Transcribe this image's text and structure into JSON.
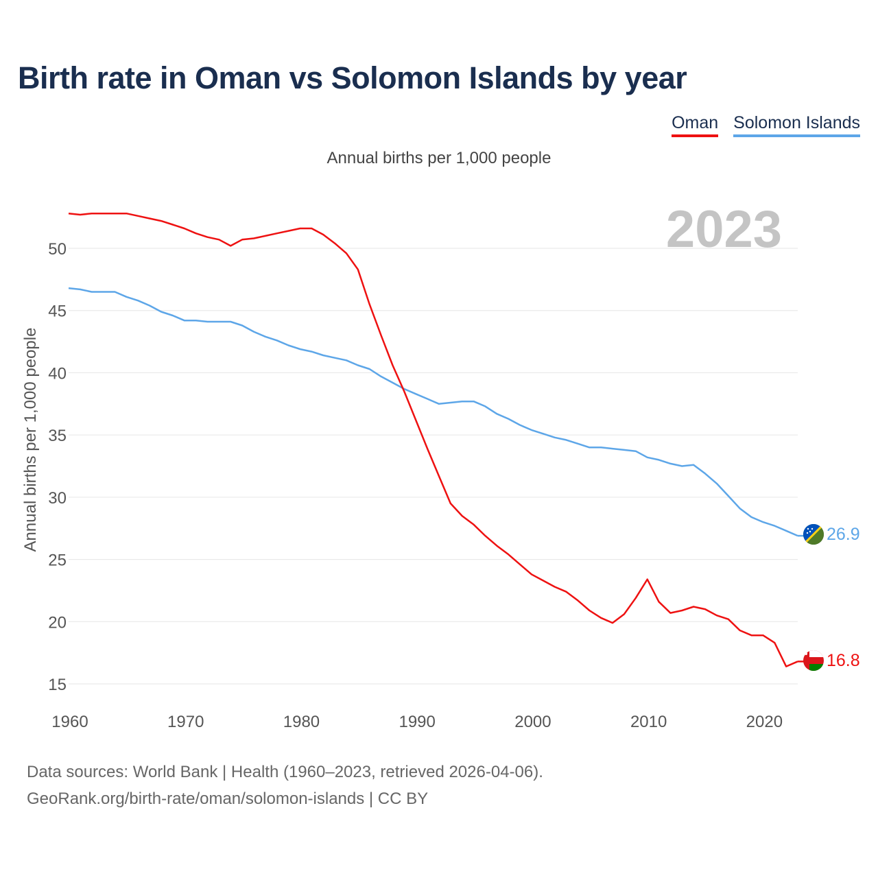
{
  "title": "Birth rate in Oman vs Solomon Islands by year",
  "subtitle": "Annual births per 1,000 people",
  "legend": [
    {
      "name": "Oman",
      "color": "#ee1111"
    },
    {
      "name": "Solomon Islands",
      "color": "#5da6e8"
    }
  ],
  "source": {
    "line1": "Data sources: World Bank | Health (1960–2023, retrieved 2026-04-06).",
    "line2": "GeoRank.org/birth-rate/oman/solomon-islands | CC BY"
  },
  "chart_data": {
    "type": "line",
    "title": "Birth rate in Oman vs Solomon Islands by year",
    "ylabel": "Annual births per 1,000 people",
    "xlabel": "",
    "year_label": "2023",
    "xlim": [
      1960,
      2023
    ],
    "ylim": [
      14,
      54
    ],
    "xticks": [
      1960,
      1970,
      1980,
      1990,
      2000,
      2010,
      2020
    ],
    "yticks": [
      15,
      20,
      25,
      30,
      35,
      40,
      45,
      50
    ],
    "grid": true,
    "x": [
      1960,
      1961,
      1962,
      1963,
      1964,
      1965,
      1966,
      1967,
      1968,
      1969,
      1970,
      1971,
      1972,
      1973,
      1974,
      1975,
      1976,
      1977,
      1978,
      1979,
      1980,
      1981,
      1982,
      1983,
      1984,
      1985,
      1986,
      1987,
      1988,
      1989,
      1990,
      1991,
      1992,
      1993,
      1994,
      1995,
      1996,
      1997,
      1998,
      1999,
      2000,
      2001,
      2002,
      2003,
      2004,
      2005,
      2006,
      2007,
      2008,
      2009,
      2010,
      2011,
      2012,
      2013,
      2014,
      2015,
      2016,
      2017,
      2018,
      2019,
      2020,
      2021,
      2022,
      2023
    ],
    "series": [
      {
        "name": "Oman",
        "color": "#ee1111",
        "end_label": "16.8",
        "values": [
          52.8,
          52.7,
          52.8,
          52.8,
          52.8,
          52.8,
          52.6,
          52.4,
          52.2,
          51.9,
          51.6,
          51.2,
          50.9,
          50.7,
          50.2,
          50.7,
          50.8,
          51.0,
          51.2,
          51.4,
          51.6,
          51.6,
          51.1,
          50.4,
          49.6,
          48.3,
          45.5,
          43.0,
          40.6,
          38.5,
          36.2,
          33.9,
          31.7,
          29.5,
          28.5,
          27.8,
          26.9,
          26.1,
          25.4,
          24.6,
          23.8,
          23.3,
          22.8,
          22.4,
          21.7,
          20.9,
          20.3,
          19.9,
          20.6,
          21.9,
          23.4,
          21.6,
          20.7,
          20.9,
          21.2,
          21.0,
          20.5,
          20.2,
          19.3,
          18.9,
          18.9,
          18.3,
          16.4,
          16.8
        ]
      },
      {
        "name": "Solomon Islands",
        "color": "#5da6e8",
        "end_label": "26.9",
        "values": [
          46.8,
          46.7,
          46.5,
          46.5,
          46.5,
          46.1,
          45.8,
          45.4,
          44.9,
          44.6,
          44.2,
          44.2,
          44.1,
          44.1,
          44.1,
          43.8,
          43.3,
          42.9,
          42.6,
          42.2,
          41.9,
          41.7,
          41.4,
          41.2,
          41.0,
          40.6,
          40.3,
          39.7,
          39.2,
          38.7,
          38.3,
          37.9,
          37.5,
          37.6,
          37.7,
          37.7,
          37.3,
          36.7,
          36.3,
          35.8,
          35.4,
          35.1,
          34.8,
          34.6,
          34.3,
          34.0,
          34.0,
          33.9,
          33.8,
          33.7,
          33.2,
          33.0,
          32.7,
          32.5,
          32.6,
          31.9,
          31.1,
          30.1,
          29.1,
          28.4,
          28.0,
          27.7,
          27.3,
          26.9
        ]
      }
    ]
  }
}
